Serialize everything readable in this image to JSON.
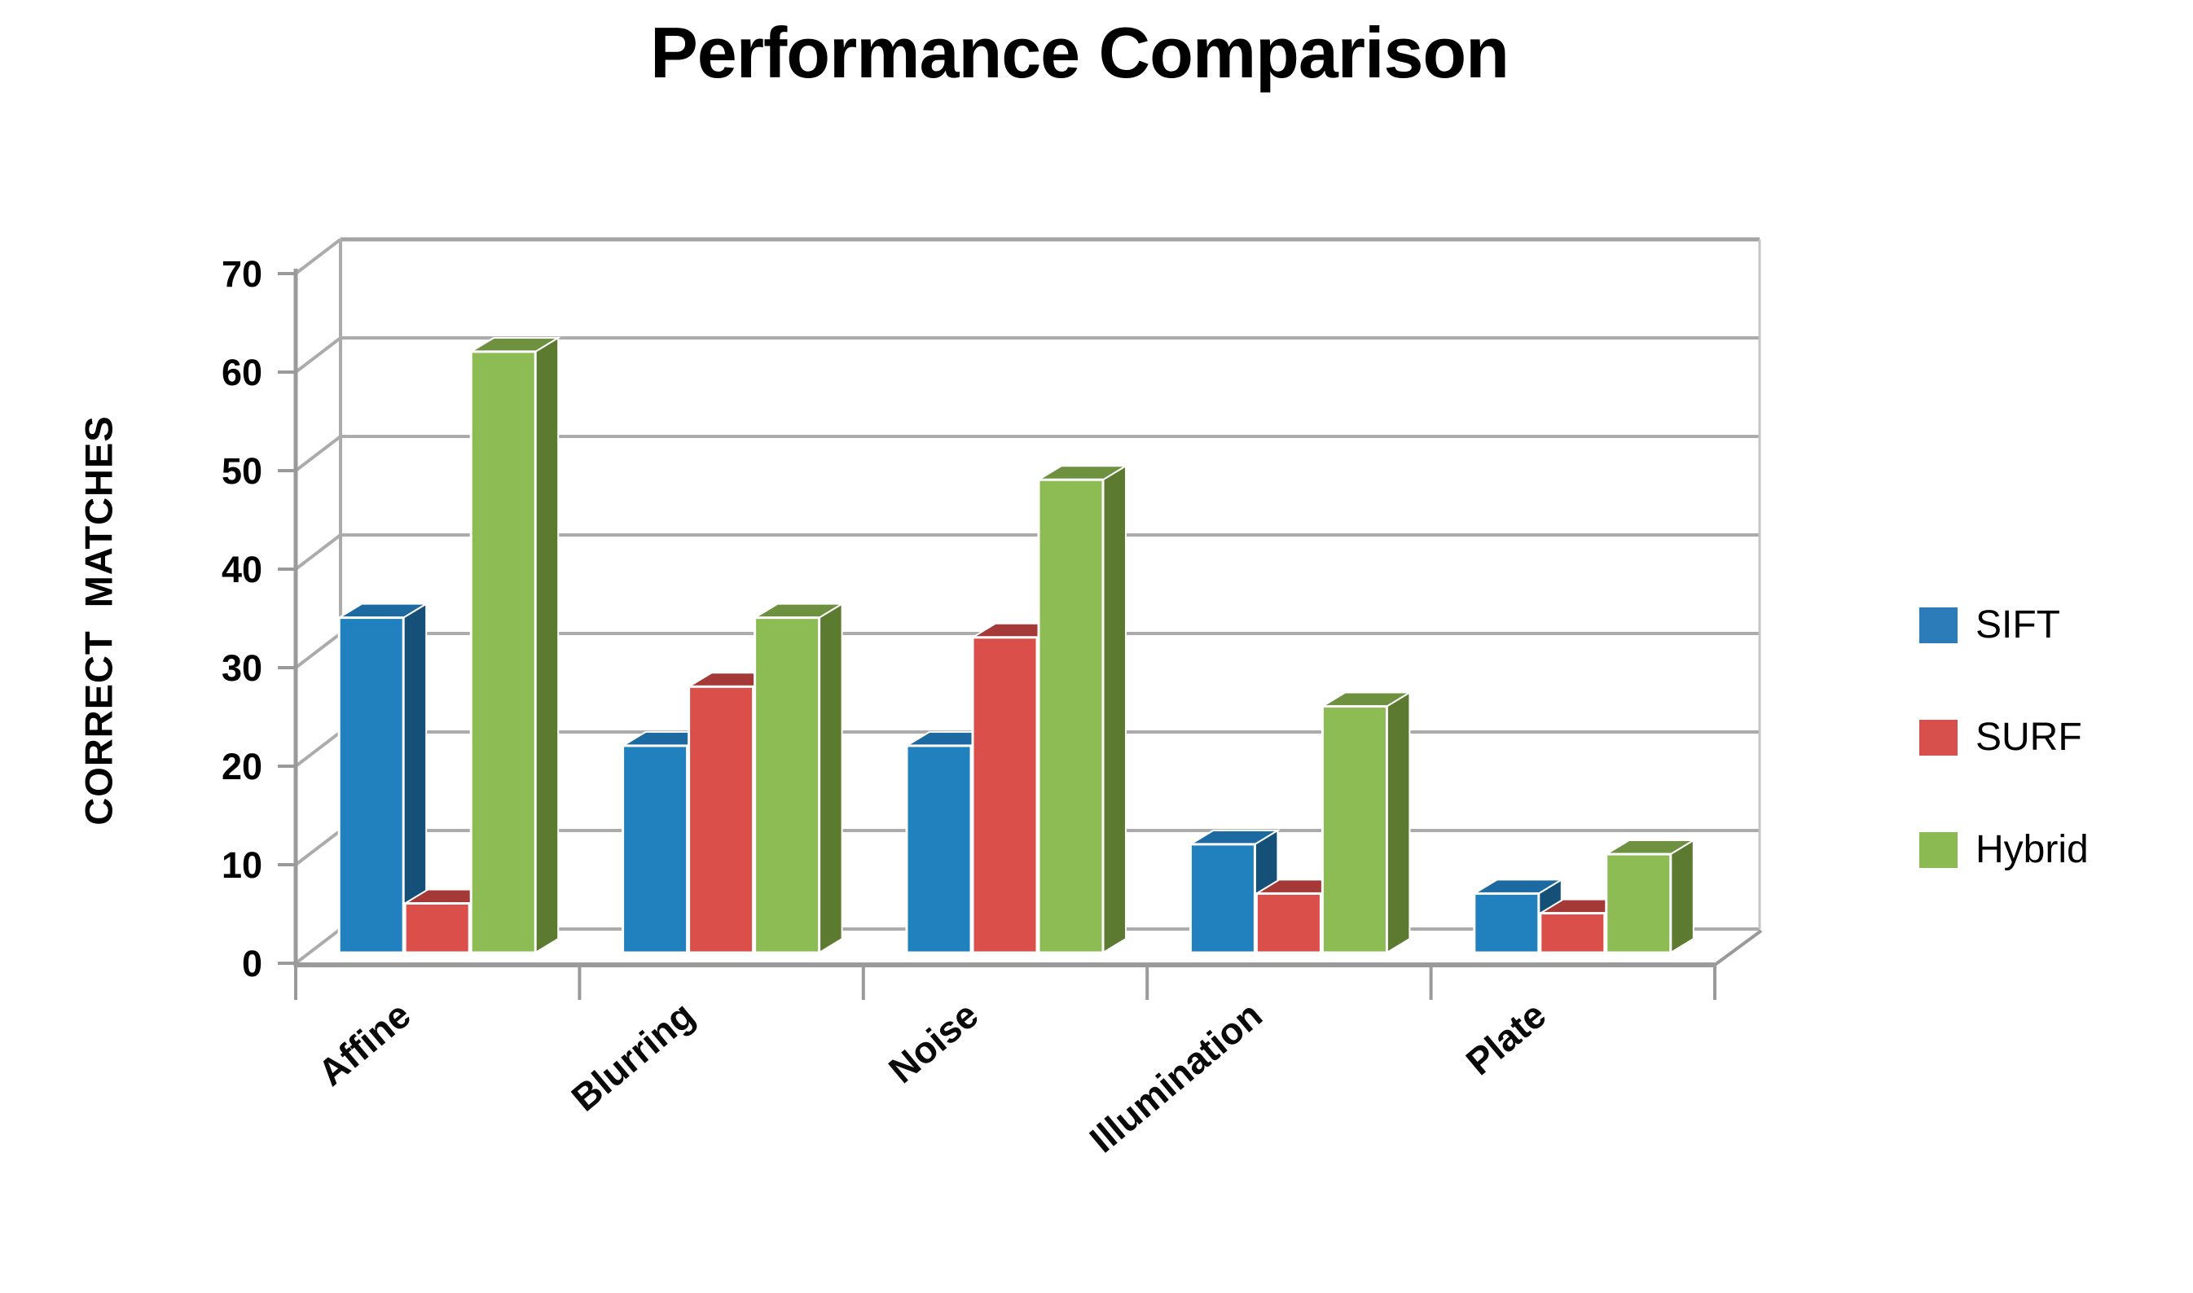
{
  "title": "Performance Comparison",
  "y_axis_title": "CORRECT MATCHES",
  "legend": {
    "position": "right",
    "items": [
      {
        "label": "SIFT",
        "color": "#2B7CB8"
      },
      {
        "label": "SURF",
        "color": "#D8504C"
      },
      {
        "label": "Hybrid",
        "color": "#8CBA52"
      }
    ]
  },
  "chart_data": {
    "type": "bar",
    "style": "3d-clustered",
    "title": "Performance Comparison",
    "categories": [
      "Affine",
      "Blurring",
      "Noise",
      "Illumination",
      "Plate"
    ],
    "series": [
      {
        "name": "SIFT",
        "color": "#2180BE",
        "top_color": "#1D6AA3",
        "side_color": "#155079",
        "values": [
          34,
          21,
          21,
          11,
          6
        ]
      },
      {
        "name": "SURF",
        "color": "#DB4F4B",
        "top_color": "#A53938",
        "side_color": "#B44441",
        "values": [
          5,
          27,
          32,
          6,
          4
        ]
      },
      {
        "name": "Hybrid",
        "color": "#8CBC53",
        "top_color": "#6E9140",
        "side_color": "#5C7A30",
        "values": [
          61,
          34,
          48,
          25,
          10
        ]
      }
    ],
    "xlabel": "",
    "ylabel": "CORRECT MATCHES",
    "ylim": [
      0,
      70
    ],
    "ytick_step": 10,
    "yticks": [
      0,
      10,
      20,
      30,
      40,
      50,
      60,
      70
    ],
    "grid": true,
    "legend_position": "right"
  },
  "colors": {
    "background": "#FFFFFF",
    "gridline": "#ABABAB",
    "axis": "#9A9A9A",
    "text": "#000000"
  }
}
